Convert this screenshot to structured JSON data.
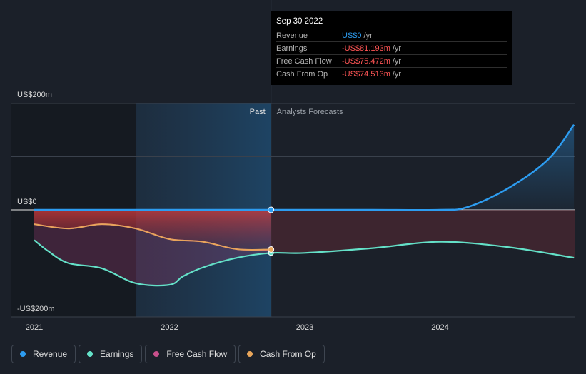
{
  "chart_data": {
    "type": "line",
    "x": [
      "2021",
      "2022",
      "2023",
      "2024"
    ],
    "y_ticks": [
      "US$200m",
      "US$0",
      "-US$200m"
    ],
    "ylim": [
      -200,
      200
    ],
    "period_labels": {
      "past": "Past",
      "forecast": "Analysts Forecasts"
    },
    "series": [
      {
        "name": "Revenue",
        "color": "#2d9cf0",
        "points": [
          [
            2021.0,
            0
          ],
          [
            2021.5,
            0
          ],
          [
            2022.0,
            0
          ],
          [
            2022.5,
            0
          ],
          [
            2022.75,
            0
          ],
          [
            2023.0,
            0
          ],
          [
            2023.5,
            0
          ],
          [
            2024.0,
            0
          ],
          [
            2024.2,
            5
          ],
          [
            2024.5,
            40
          ],
          [
            2024.8,
            95
          ],
          [
            2024.99,
            160
          ]
        ]
      },
      {
        "name": "Earnings",
        "color": "#64e1c8",
        "points": [
          [
            2021.0,
            -57
          ],
          [
            2021.1,
            -77
          ],
          [
            2021.25,
            -100
          ],
          [
            2021.5,
            -110
          ],
          [
            2021.75,
            -138
          ],
          [
            2022.0,
            -141
          ],
          [
            2022.1,
            -125
          ],
          [
            2022.25,
            -108
          ],
          [
            2022.5,
            -90
          ],
          [
            2022.75,
            -81
          ],
          [
            2023.0,
            -81
          ],
          [
            2023.5,
            -72
          ],
          [
            2024.0,
            -60
          ],
          [
            2024.5,
            -70
          ],
          [
            2024.99,
            -90
          ]
        ]
      },
      {
        "name": "Free Cash Flow",
        "color": "#c8508c",
        "points": [
          [
            2021.0,
            -27
          ],
          [
            2021.25,
            -35
          ],
          [
            2021.5,
            -27
          ],
          [
            2021.75,
            -35
          ],
          [
            2022.0,
            -55
          ],
          [
            2022.25,
            -60
          ],
          [
            2022.5,
            -74
          ],
          [
            2022.75,
            -75
          ]
        ]
      },
      {
        "name": "Cash From Op",
        "color": "#e8a55a",
        "points": [
          [
            2021.0,
            -27
          ],
          [
            2021.25,
            -35
          ],
          [
            2021.5,
            -27
          ],
          [
            2021.75,
            -35
          ],
          [
            2022.0,
            -55
          ],
          [
            2022.25,
            -60
          ],
          [
            2022.5,
            -74
          ],
          [
            2022.75,
            -74.5
          ]
        ]
      }
    ]
  },
  "tooltip": {
    "date": "Sep 30 2022",
    "rows": [
      {
        "label": "Revenue",
        "value": "US$0",
        "unit": "/yr"
      },
      {
        "label": "Earnings",
        "value": "-US$81.193m",
        "unit": "/yr"
      },
      {
        "label": "Free Cash Flow",
        "value": "-US$75.472m",
        "unit": "/yr"
      },
      {
        "label": "Cash From Op",
        "value": "-US$74.513m",
        "unit": "/yr"
      }
    ]
  },
  "legend": [
    {
      "label": "Revenue",
      "color": "#2d9cf0"
    },
    {
      "label": "Earnings",
      "color": "#64e1c8"
    },
    {
      "label": "Free Cash Flow",
      "color": "#c8508c"
    },
    {
      "label": "Cash From Op",
      "color": "#e8a55a"
    }
  ]
}
